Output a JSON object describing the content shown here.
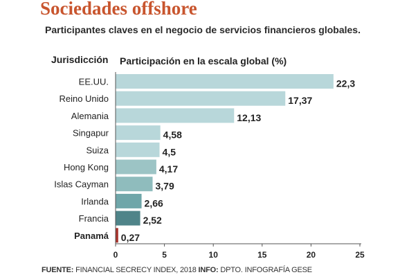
{
  "chart_data": {
    "type": "bar",
    "orientation": "horizontal",
    "title": "Sociedades offshore",
    "subtitle": "Participantes claves en el negocio de servicios financieros globales.",
    "category_header": "Jurisdicción",
    "value_header": "Participación en la escala global  (%)",
    "categories": [
      "EE.UU.",
      "Reino Unido",
      "Alemania",
      "Singapur",
      "Suiza",
      "Hong Kong",
      "Islas Cayman",
      "Irlanda",
      "Francia",
      "Panamá"
    ],
    "values": [
      22.3,
      17.37,
      12.13,
      4.58,
      4.5,
      4.17,
      3.79,
      2.66,
      2.52,
      0.27
    ],
    "value_labels": [
      "22,3",
      "17,37",
      "12,13",
      "4,58",
      "4,5",
      "4,17",
      "3,79",
      "2,66",
      "2,52",
      "0,27"
    ],
    "highlight": "Panamá",
    "bar_colors": [
      "#b8d7da",
      "#b8d7da",
      "#b8d7da",
      "#b8d7da",
      "#b8d7da",
      "#9cc4c5",
      "#8fbcbd",
      "#6fa6a9",
      "#4f8489",
      "#a8322b"
    ],
    "xlim": [
      0,
      25
    ],
    "xticks": [
      0,
      5,
      10,
      15,
      20,
      25
    ],
    "grid": false
  },
  "footer": {
    "fuente_label": "FUENTE:",
    "fuente_text": " FINANCIAL SECRECY INDEX, 2018 ",
    "info_label": "INFO:",
    "info_text": " DPTO. INFOGRAFÍA GESE"
  }
}
